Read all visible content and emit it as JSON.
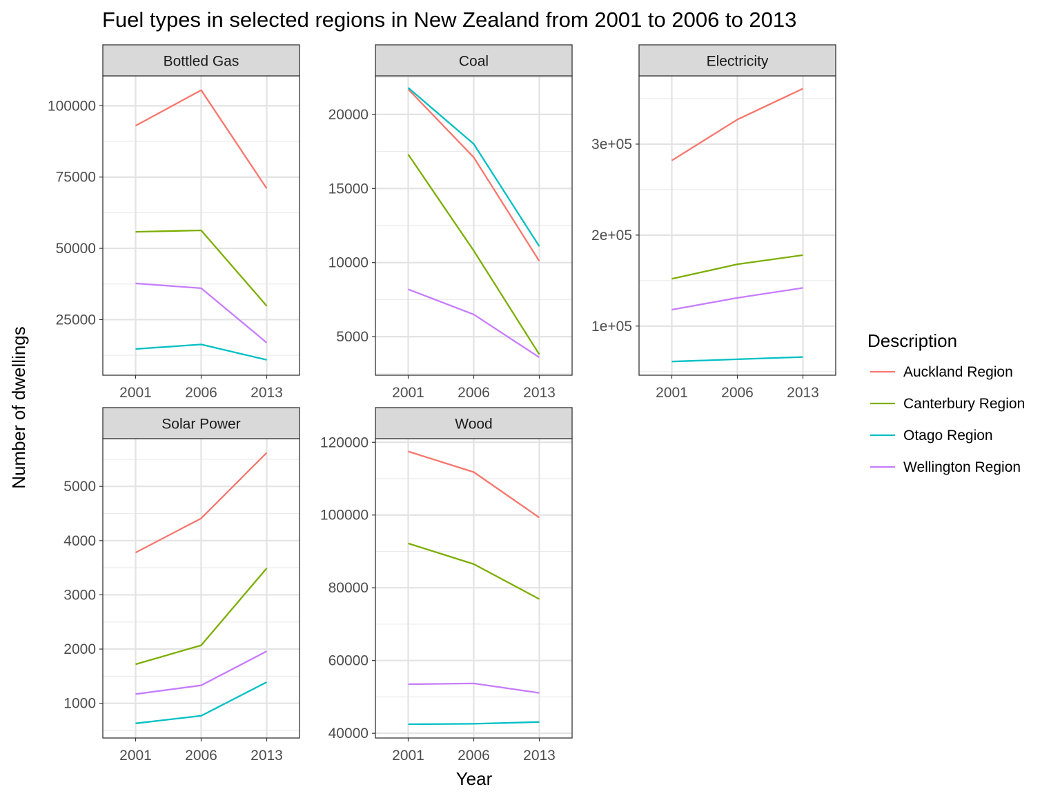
{
  "chart_data": {
    "type": "line",
    "title": "Fuel types in selected regions in New Zealand from 2001 to 2006 to 2013",
    "xlabel": "Year",
    "ylabel": "Number of dwellings",
    "legend": {
      "title": "Description",
      "position": "right",
      "entries": [
        {
          "name": "Auckland Region",
          "color": "#F8766D"
        },
        {
          "name": "Canterbury Region",
          "color": "#7CAE00"
        },
        {
          "name": "Otago Region",
          "color": "#00BFC4"
        },
        {
          "name": "Wellington Region",
          "color": "#C77CFF"
        }
      ]
    },
    "x": [
      "2001",
      "2006",
      "2013"
    ],
    "grid": true,
    "panels": [
      {
        "label": "Bottled Gas",
        "ylim": [
          5500,
          110500
        ],
        "yticks": [
          25000,
          50000,
          75000,
          100000
        ],
        "ytick_labels": [
          "25000",
          "50000",
          "75000",
          "100000"
        ],
        "series": [
          {
            "name": "Auckland Region",
            "values": [
              93000,
              105500,
              71000
            ]
          },
          {
            "name": "Canterbury Region",
            "values": [
              55800,
              56300,
              29800
            ]
          },
          {
            "name": "Otago Region",
            "values": [
              14700,
              16300,
              10900
            ]
          },
          {
            "name": "Wellington Region",
            "values": [
              37700,
              36000,
              16900
            ]
          }
        ]
      },
      {
        "label": "Coal",
        "ylim": [
          2400,
          22600
        ],
        "yticks": [
          5000,
          10000,
          15000,
          20000
        ],
        "ytick_labels": [
          "5000",
          "10000",
          "15000",
          "20000"
        ],
        "series": [
          {
            "name": "Auckland Region",
            "values": [
              21700,
              17100,
              10100
            ]
          },
          {
            "name": "Canterbury Region",
            "values": [
              17300,
              10800,
              3800
            ]
          },
          {
            "name": "Otago Region",
            "values": [
              21800,
              18000,
              11100
            ]
          },
          {
            "name": "Wellington Region",
            "values": [
              8200,
              6500,
              3600
            ]
          }
        ]
      },
      {
        "label": "Electricity",
        "ylim": [
          46000,
          375000
        ],
        "yticks": [
          100000,
          200000,
          300000
        ],
        "ytick_labels": [
          "1e+05",
          "2e+05",
          "3e+05"
        ],
        "series": [
          {
            "name": "Auckland Region",
            "values": [
              282000,
              327000,
              361000
            ]
          },
          {
            "name": "Canterbury Region",
            "values": [
              152000,
              168000,
              178000
            ]
          },
          {
            "name": "Otago Region",
            "values": [
              61000,
              63500,
              66000
            ]
          },
          {
            "name": "Wellington Region",
            "values": [
              118000,
              131000,
              142000
            ]
          }
        ]
      },
      {
        "label": "Solar Power",
        "ylim": [
          360,
          5880
        ],
        "yticks": [
          1000,
          2000,
          3000,
          4000,
          5000
        ],
        "ytick_labels": [
          "1000",
          "2000",
          "3000",
          "4000",
          "5000"
        ],
        "series": [
          {
            "name": "Auckland Region",
            "values": [
              3780,
              4410,
              5620
            ]
          },
          {
            "name": "Canterbury Region",
            "values": [
              1720,
              2070,
              3490
            ]
          },
          {
            "name": "Otago Region",
            "values": [
              630,
              770,
              1390
            ]
          },
          {
            "name": "Wellington Region",
            "values": [
              1170,
              1330,
              1960
            ]
          }
        ]
      },
      {
        "label": "Wood",
        "ylim": [
          38700,
          121000
        ],
        "yticks": [
          40000,
          60000,
          80000,
          100000,
          120000
        ],
        "ytick_labels": [
          "40000",
          "60000",
          "80000",
          "100000",
          "120000"
        ],
        "series": [
          {
            "name": "Auckland Region",
            "values": [
              117500,
              111800,
              99300
            ]
          },
          {
            "name": "Canterbury Region",
            "values": [
              92200,
              86500,
              76900
            ]
          },
          {
            "name": "Otago Region",
            "values": [
              42500,
              42600,
              43100
            ]
          },
          {
            "name": "Wellington Region",
            "values": [
              53500,
              53700,
              51100
            ]
          }
        ]
      }
    ]
  }
}
